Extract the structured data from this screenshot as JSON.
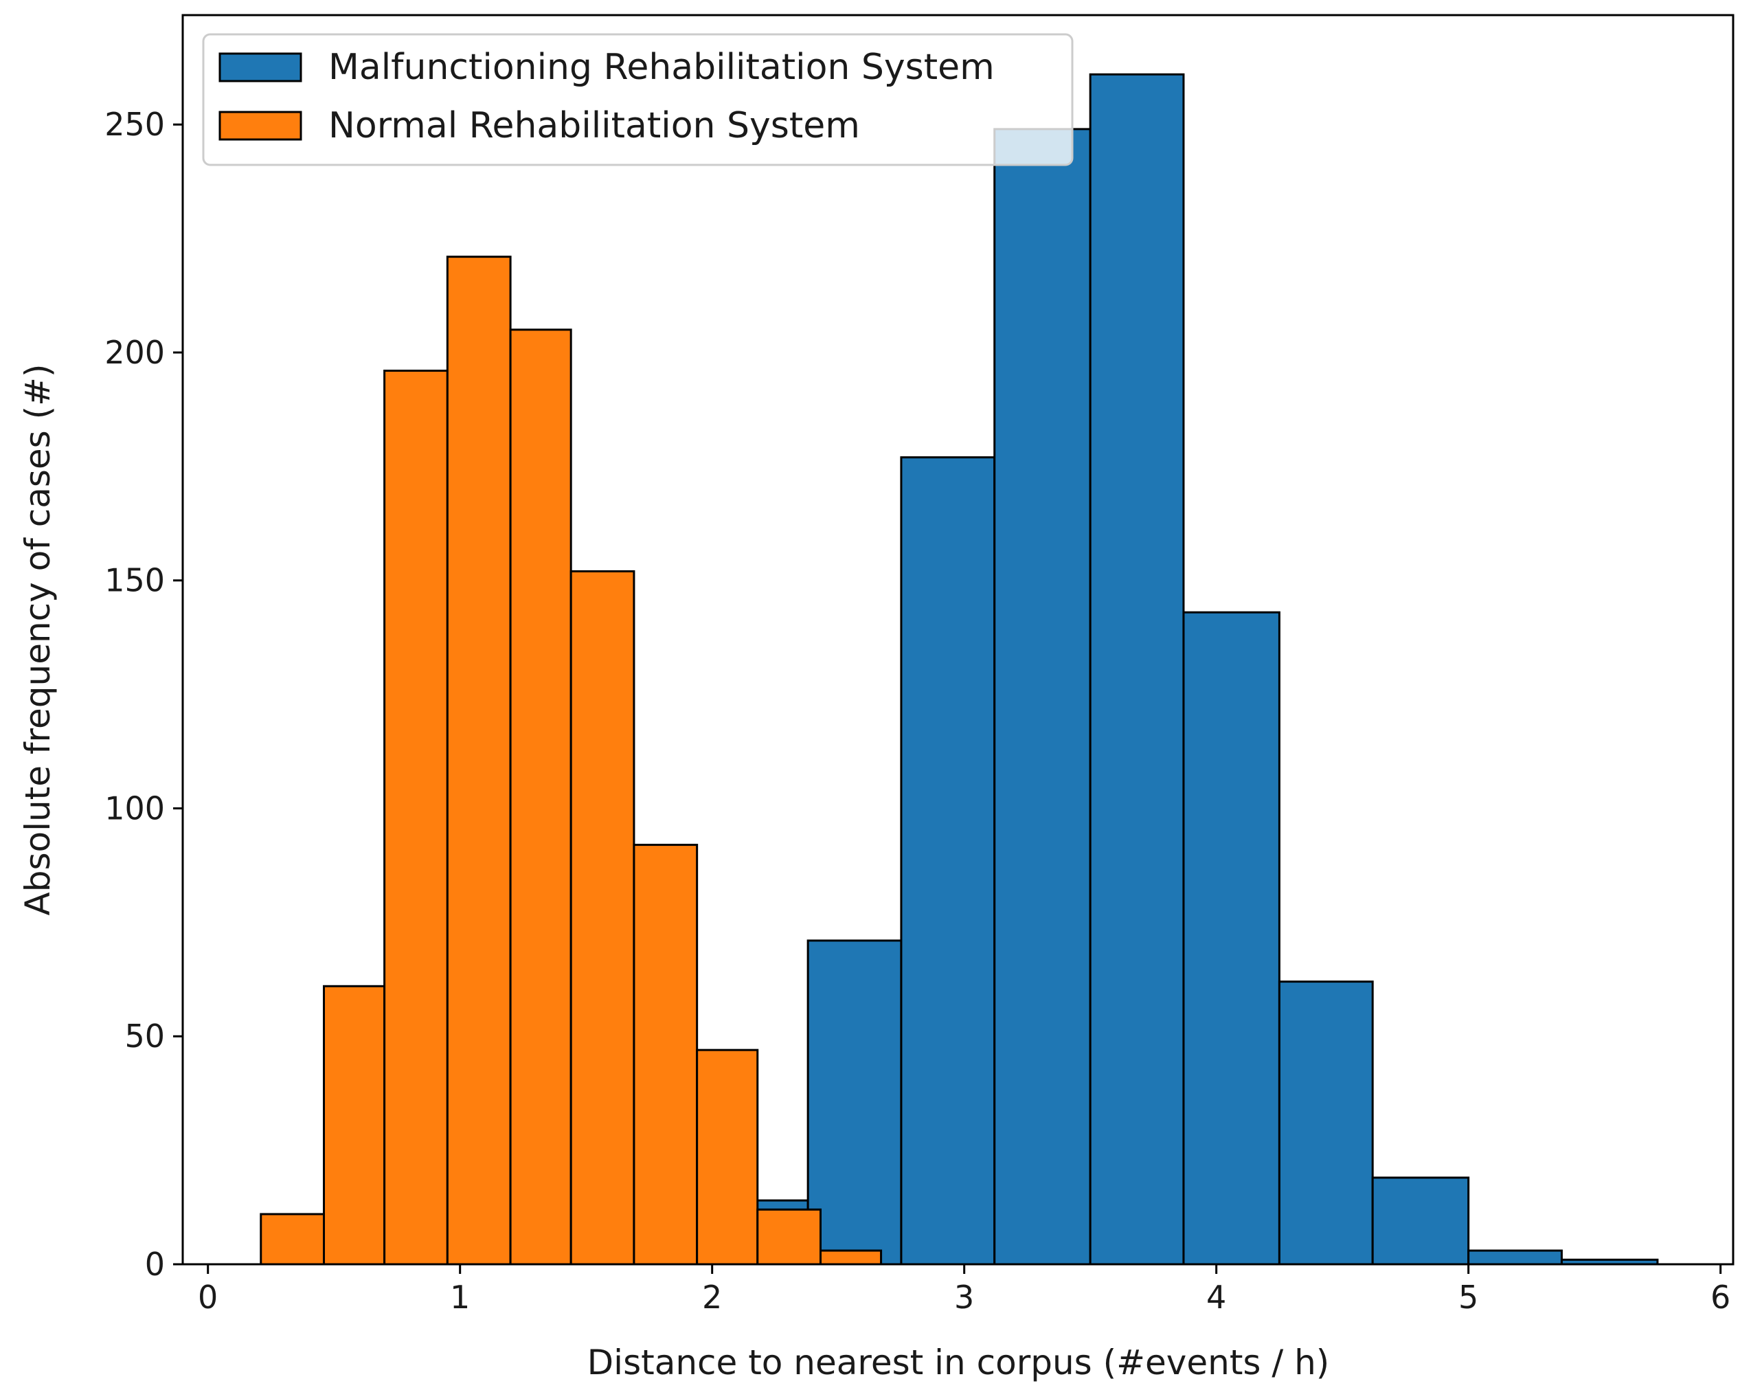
{
  "chart_data": {
    "type": "histogram",
    "title": "",
    "xlabel": "Distance to nearest in corpus (#events / h)",
    "ylabel": "Absolute frequency of cases (#)",
    "xlim": [
      -0.1,
      6.05
    ],
    "ylim": [
      0,
      274
    ],
    "xticks": [
      "0",
      "1",
      "2",
      "3",
      "4",
      "5",
      "6"
    ],
    "yticks": [
      "0",
      "50",
      "100",
      "150",
      "200",
      "250"
    ],
    "legend_position": "upper-left",
    "series": [
      {
        "name": "Malfunctioning Rehabilitation System",
        "color": "#1f77b4",
        "bins": [
          {
            "x0": 2.0,
            "x1": 2.38,
            "count": 14
          },
          {
            "x0": 2.38,
            "x1": 2.75,
            "count": 71
          },
          {
            "x0": 2.75,
            "x1": 3.12,
            "count": 177
          },
          {
            "x0": 3.12,
            "x1": 3.5,
            "count": 249
          },
          {
            "x0": 3.5,
            "x1": 3.87,
            "count": 261
          },
          {
            "x0": 3.87,
            "x1": 4.25,
            "count": 143
          },
          {
            "x0": 4.25,
            "x1": 4.62,
            "count": 62
          },
          {
            "x0": 4.62,
            "x1": 5.0,
            "count": 19
          },
          {
            "x0": 5.0,
            "x1": 5.37,
            "count": 3
          },
          {
            "x0": 5.37,
            "x1": 5.75,
            "count": 1
          }
        ]
      },
      {
        "name": "Normal Rehabilitation System",
        "color": "#ff7f0e",
        "bins": [
          {
            "x0": 0.21,
            "x1": 0.46,
            "count": 11
          },
          {
            "x0": 0.46,
            "x1": 0.7,
            "count": 61
          },
          {
            "x0": 0.7,
            "x1": 0.95,
            "count": 196
          },
          {
            "x0": 0.95,
            "x1": 1.2,
            "count": 221
          },
          {
            "x0": 1.2,
            "x1": 1.44,
            "count": 205
          },
          {
            "x0": 1.44,
            "x1": 1.69,
            "count": 152
          },
          {
            "x0": 1.69,
            "x1": 1.94,
            "count": 92
          },
          {
            "x0": 1.94,
            "x1": 2.18,
            "count": 47
          },
          {
            "x0": 2.18,
            "x1": 2.43,
            "count": 12
          },
          {
            "x0": 2.43,
            "x1": 2.67,
            "count": 3
          }
        ]
      }
    ]
  }
}
